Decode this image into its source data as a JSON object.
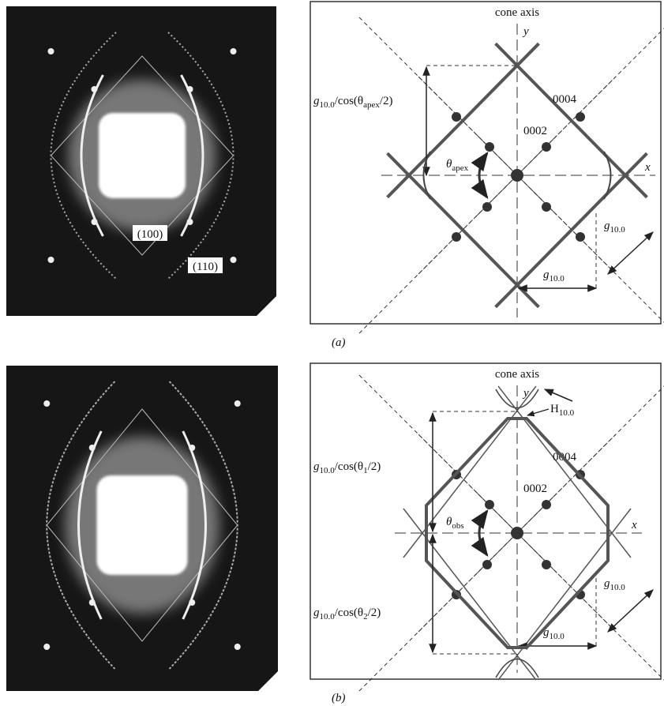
{
  "panels": [
    {
      "label": "(a)",
      "image_labels": [
        "(100)",
        "(110)"
      ],
      "diagram": {
        "cone_axis": "cone axis",
        "y": "y",
        "x": "x",
        "r0004": "0004",
        "r0002": "0002",
        "angle": [
          "θ",
          "apex"
        ],
        "height": [
          "g",
          "10.0",
          "/cos(θ",
          "apex",
          "/2)"
        ],
        "spacing_diag": [
          "g",
          "10.0"
        ],
        "spacing_horiz": [
          "g",
          "10.0"
        ]
      }
    },
    {
      "label": "(b)",
      "diagram": {
        "cone_axis": "cone axis",
        "y": "y",
        "x": "x",
        "r0004": "0004",
        "r0002": "0002",
        "angle": [
          "θ",
          "obs"
        ],
        "h": [
          "H",
          "10.0"
        ],
        "height_top": [
          "g",
          "10.0",
          "/cos(θ",
          "1",
          "/2)"
        ],
        "height_bottom": [
          "g",
          "10.0",
          "/cos(θ",
          "2",
          "/2)"
        ],
        "spacing_diag": [
          "g",
          "10.0"
        ],
        "spacing_horiz": [
          "g",
          "10.0"
        ]
      }
    }
  ]
}
